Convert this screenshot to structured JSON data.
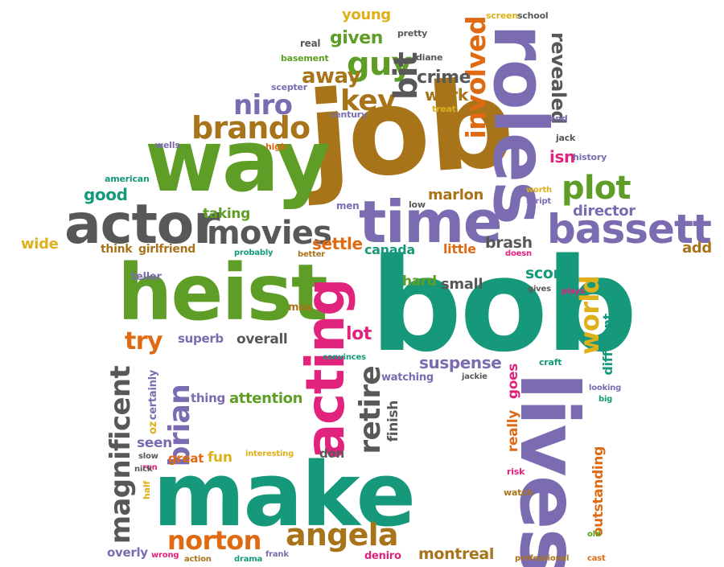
{
  "palette": {
    "teal": "#16997a",
    "green": "#5e9e27",
    "brown": "#a8741a",
    "purple": "#7b6bb0",
    "gray": "#585858",
    "orange": "#df6a12",
    "magenta": "#e1237d",
    "gold": "#deb01a"
  },
  "words": [
    {
      "text": "job",
      "c": "brown"
    },
    {
      "text": "bob",
      "c": "teal"
    },
    {
      "text": "make",
      "c": "teal"
    },
    {
      "text": "way",
      "c": "green"
    },
    {
      "text": "heist",
      "c": "green"
    },
    {
      "text": "roles",
      "c": "purple"
    },
    {
      "text": "lives",
      "c": "purple"
    },
    {
      "text": "acting",
      "c": "magenta"
    },
    {
      "text": "time",
      "c": "purple"
    },
    {
      "text": "actor",
      "c": "gray"
    },
    {
      "text": "bassett",
      "c": "purple"
    },
    {
      "text": "movies",
      "c": "gray"
    },
    {
      "text": "brando",
      "c": "brown"
    },
    {
      "text": "plot",
      "c": "green"
    },
    {
      "text": "guy",
      "c": "green"
    },
    {
      "text": "niro",
      "c": "purple"
    },
    {
      "text": "key",
      "c": "brown"
    },
    {
      "text": "bit",
      "c": "gray"
    },
    {
      "text": "involved",
      "c": "orange"
    },
    {
      "text": "revealed",
      "c": "gray"
    },
    {
      "text": "crime",
      "c": "gray"
    },
    {
      "text": "away",
      "c": "brown"
    },
    {
      "text": "given",
      "c": "green"
    },
    {
      "text": "young",
      "c": "gold"
    },
    {
      "text": "pretty",
      "c": "gray"
    },
    {
      "text": "real",
      "c": "gray"
    },
    {
      "text": "screen",
      "c": "gold"
    },
    {
      "text": "school",
      "c": "gray"
    },
    {
      "text": "basement",
      "c": "green"
    },
    {
      "text": "diane",
      "c": "gray"
    },
    {
      "text": "scepter",
      "c": "purple"
    },
    {
      "text": "work",
      "c": "brown"
    },
    {
      "text": "treat",
      "c": "gold"
    },
    {
      "text": "century",
      "c": "purple"
    },
    {
      "text": "end",
      "c": "purple"
    },
    {
      "text": "jack",
      "c": "gray"
    },
    {
      "text": "isn",
      "c": "magenta"
    },
    {
      "text": "history",
      "c": "purple"
    },
    {
      "text": "worth",
      "c": "gold"
    },
    {
      "text": "script",
      "c": "purple"
    },
    {
      "text": "wells",
      "c": "purple"
    },
    {
      "text": "high",
      "c": "orange"
    },
    {
      "text": "american",
      "c": "teal"
    },
    {
      "text": "good",
      "c": "teal"
    },
    {
      "text": "marlon",
      "c": "brown"
    },
    {
      "text": "director",
      "c": "purple"
    },
    {
      "text": "taking",
      "c": "green"
    },
    {
      "text": "men",
      "c": "purple"
    },
    {
      "text": "low",
      "c": "gray"
    },
    {
      "text": "settle",
      "c": "orange"
    },
    {
      "text": "little",
      "c": "orange"
    },
    {
      "text": "canada",
      "c": "teal"
    },
    {
      "text": "brash",
      "c": "gray"
    },
    {
      "text": "doesn",
      "c": "magenta"
    },
    {
      "text": "add",
      "c": "brown"
    },
    {
      "text": "wide",
      "c": "gold"
    },
    {
      "text": "think",
      "c": "brown"
    },
    {
      "text": "girlfriend",
      "c": "brown"
    },
    {
      "text": "probably",
      "c": "teal"
    },
    {
      "text": "better",
      "c": "brown"
    },
    {
      "text": "teller",
      "c": "purple"
    },
    {
      "text": "max",
      "c": "brown"
    },
    {
      "text": "hard",
      "c": "green"
    },
    {
      "text": "small",
      "c": "gray"
    },
    {
      "text": "score",
      "c": "teal"
    },
    {
      "text": "gives",
      "c": "gray"
    },
    {
      "text": "plays",
      "c": "magenta"
    },
    {
      "text": "world",
      "c": "gold"
    },
    {
      "text": "try",
      "c": "orange"
    },
    {
      "text": "superb",
      "c": "purple"
    },
    {
      "text": "overall",
      "c": "gray"
    },
    {
      "text": "lot",
      "c": "magenta"
    },
    {
      "text": "convinces",
      "c": "teal"
    },
    {
      "text": "suspense",
      "c": "purple"
    },
    {
      "text": "watching",
      "c": "purple"
    },
    {
      "text": "jackie",
      "c": "gray"
    },
    {
      "text": "craft",
      "c": "teal"
    },
    {
      "text": "different",
      "c": "teal"
    },
    {
      "text": "looking",
      "c": "purple"
    },
    {
      "text": "big",
      "c": "teal"
    },
    {
      "text": "magnificent",
      "c": "gray"
    },
    {
      "text": "brian",
      "c": "purple"
    },
    {
      "text": "certainly",
      "c": "purple"
    },
    {
      "text": "oz",
      "c": "gold"
    },
    {
      "text": "thing",
      "c": "purple"
    },
    {
      "text": "attention",
      "c": "green"
    },
    {
      "text": "retire",
      "c": "gray"
    },
    {
      "text": "finish",
      "c": "gray"
    },
    {
      "text": "goes",
      "c": "magenta"
    },
    {
      "text": "really",
      "c": "orange"
    },
    {
      "text": "seen",
      "c": "purple"
    },
    {
      "text": "great",
      "c": "orange"
    },
    {
      "text": "fun",
      "c": "gold"
    },
    {
      "text": "interesting",
      "c": "gold"
    },
    {
      "text": "slow",
      "c": "gray"
    },
    {
      "text": "run",
      "c": "magenta"
    },
    {
      "text": "nick",
      "c": "gray"
    },
    {
      "text": "half",
      "c": "gold"
    },
    {
      "text": "don",
      "c": "gray"
    },
    {
      "text": "risk",
      "c": "magenta"
    },
    {
      "text": "watch",
      "c": "brown"
    },
    {
      "text": "outstanding",
      "c": "orange"
    },
    {
      "text": "old",
      "c": "green"
    },
    {
      "text": "norton",
      "c": "orange"
    },
    {
      "text": "angela",
      "c": "brown"
    },
    {
      "text": "overly",
      "c": "purple"
    },
    {
      "text": "wrong",
      "c": "magenta"
    },
    {
      "text": "action",
      "c": "brown"
    },
    {
      "text": "drama",
      "c": "teal"
    },
    {
      "text": "frank",
      "c": "purple"
    },
    {
      "text": "deniro",
      "c": "magenta"
    },
    {
      "text": "montreal",
      "c": "brown"
    },
    {
      "text": "professional",
      "c": "brown"
    },
    {
      "text": "cast",
      "c": "orange"
    }
  ]
}
